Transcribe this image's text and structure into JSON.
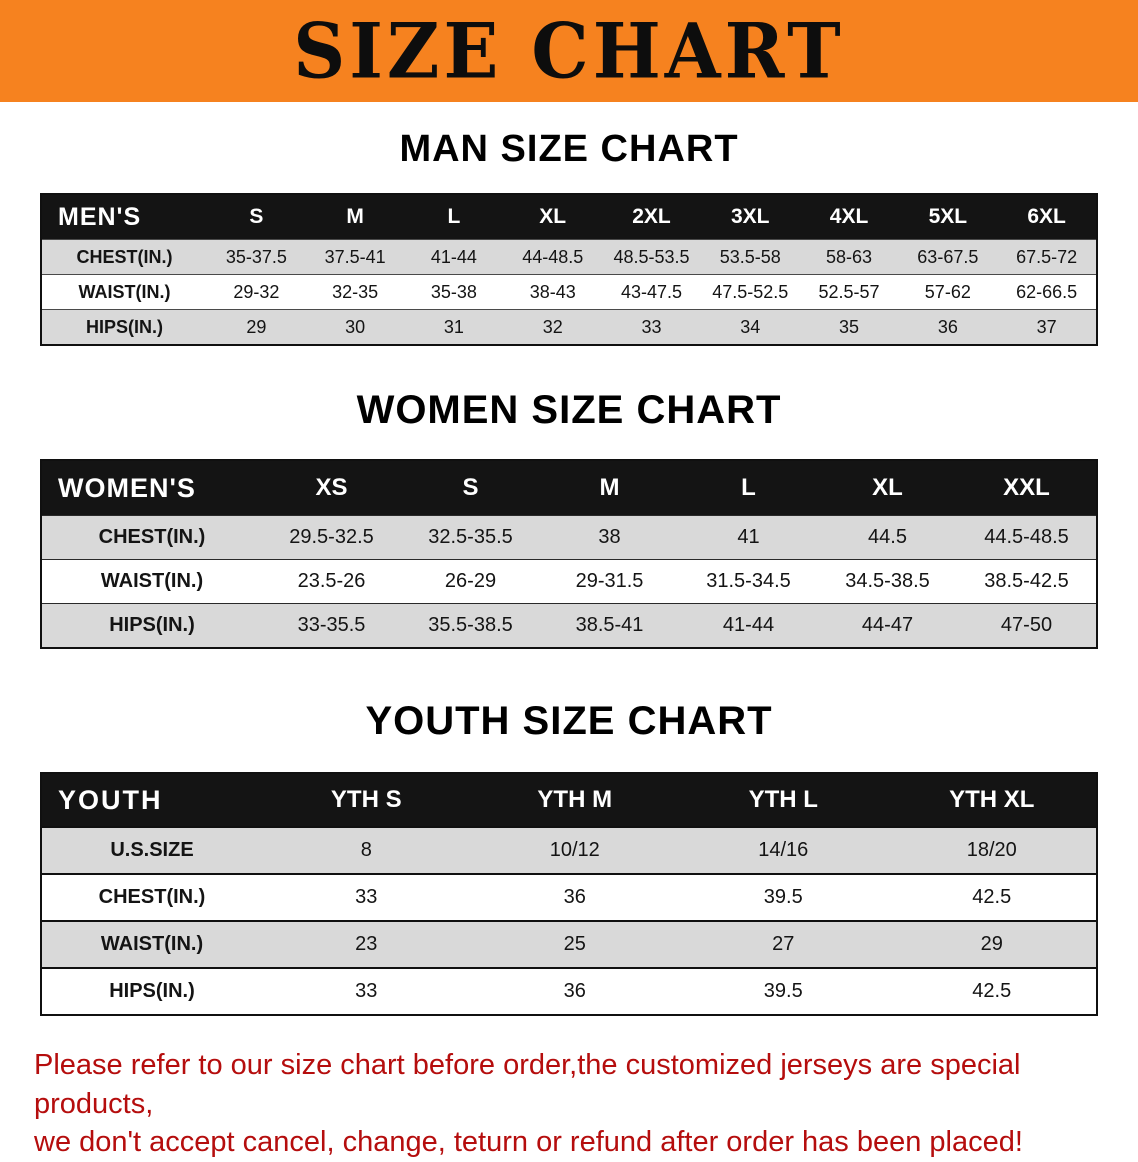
{
  "banner": {
    "title": "SIZE CHART"
  },
  "colors": {
    "banner_orange": "#f6821f",
    "table_header_black": "#141414",
    "row_gray": "#d9d9d9",
    "footer_red": "#b50d0d"
  },
  "sections": [
    {
      "id": "man",
      "heading": "MAN SIZE CHART",
      "table": {
        "header_label": "MEN'S",
        "columns": [
          "S",
          "M",
          "L",
          "XL",
          "2XL",
          "3XL",
          "4XL",
          "5XL",
          "6XL"
        ],
        "rows": [
          {
            "label": "CHEST(IN.)",
            "values": [
              "35-37.5",
              "37.5-41",
              "41-44",
              "44-48.5",
              "48.5-53.5",
              "53.5-58",
              "58-63",
              "63-67.5",
              "67.5-72"
            ]
          },
          {
            "label": "WAIST(IN.)",
            "values": [
              "29-32",
              "32-35",
              "35-38",
              "38-43",
              "43-47.5",
              "47.5-52.5",
              "52.5-57",
              "57-62",
              "62-66.5"
            ]
          },
          {
            "label": "HIPS(IN.)",
            "values": [
              "29",
              "30",
              "31",
              "32",
              "33",
              "34",
              "35",
              "36",
              "37"
            ]
          }
        ]
      }
    },
    {
      "id": "women",
      "heading": "WOMEN SIZE CHART",
      "table": {
        "header_label": "WOMEN'S",
        "columns": [
          "XS",
          "S",
          "M",
          "L",
          "XL",
          "XXL"
        ],
        "rows": [
          {
            "label": "CHEST(IN.)",
            "values": [
              "29.5-32.5",
              "32.5-35.5",
              "38",
              "41",
              "44.5",
              "44.5-48.5"
            ]
          },
          {
            "label": "WAIST(IN.)",
            "values": [
              "23.5-26",
              "26-29",
              "29-31.5",
              "31.5-34.5",
              "34.5-38.5",
              "38.5-42.5"
            ]
          },
          {
            "label": "HIPS(IN.)",
            "values": [
              "33-35.5",
              "35.5-38.5",
              "38.5-41",
              "41-44",
              "44-47",
              "47-50"
            ]
          }
        ]
      }
    },
    {
      "id": "youth",
      "heading": "YOUTH SIZE CHART",
      "table": {
        "header_label": "YOUTH",
        "columns": [
          "YTH S",
          "YTH M",
          "YTH L",
          "YTH XL"
        ],
        "rows": [
          {
            "label": "U.S.SIZE",
            "values": [
              "8",
              "10/12",
              "14/16",
              "18/20"
            ]
          },
          {
            "label": "CHEST(IN.)",
            "values": [
              "33",
              "36",
              "39.5",
              "42.5"
            ]
          },
          {
            "label": "WAIST(IN.)",
            "values": [
              "23",
              "25",
              "27",
              "29"
            ]
          },
          {
            "label": "HIPS(IN.)",
            "values": [
              "33",
              "36",
              "39.5",
              "42.5"
            ]
          }
        ]
      }
    }
  ],
  "footer": {
    "line1": "Please refer to our size chart before order,the customized jerseys are special products,",
    "line2": "we don't accept cancel, change, teturn or refund after order has been placed!"
  }
}
